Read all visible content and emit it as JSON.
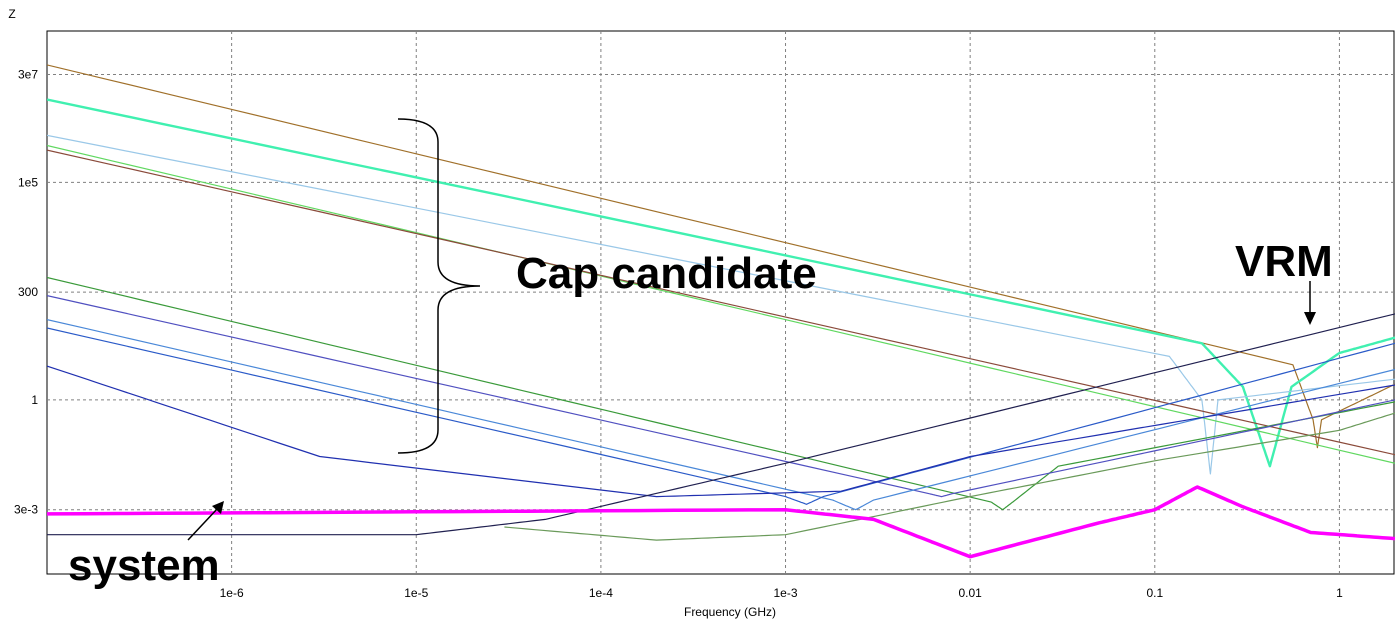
{
  "chart_data": {
    "type": "line",
    "ylabel": "Z",
    "xlabel": "Frequency (GHz)",
    "x_scale": "log",
    "y_scale": "log",
    "xlim": [
      1e-07,
      2
    ],
    "ylim": [
      0.0001,
      300000000.0
    ],
    "grid": true,
    "x_ticks": [
      {
        "value": 1e-06,
        "label": "1e-6"
      },
      {
        "value": 1e-05,
        "label": "1e-5"
      },
      {
        "value": 0.0001,
        "label": "1e-4"
      },
      {
        "value": 0.001,
        "label": "1e-3"
      },
      {
        "value": 0.01,
        "label": "0.01"
      },
      {
        "value": 0.1,
        "label": "0.1"
      },
      {
        "value": 1,
        "label": "1"
      }
    ],
    "y_ticks": [
      {
        "value": 30000000.0,
        "label": "3e7"
      },
      {
        "value": 100000.0,
        "label": "1e5"
      },
      {
        "value": 300,
        "label": "300"
      },
      {
        "value": 1,
        "label": "1"
      },
      {
        "value": 0.003,
        "label": "3e-3"
      }
    ],
    "annotations": [
      {
        "text": "Cap candidate"
      },
      {
        "text": "VRM"
      },
      {
        "text": "system"
      }
    ],
    "series": [
      {
        "color": "#a0702a",
        "width": 1.2,
        "points": [
          [
            1e-07,
            50000000.0
          ],
          [
            0.56,
            6.4
          ],
          [
            0.72,
            0.35
          ],
          [
            0.76,
            0.08
          ],
          [
            0.8,
            0.35
          ],
          [
            2,
            2.3
          ]
        ]
      },
      {
        "color": "#40f0b0",
        "width": 2.4,
        "points": [
          [
            1e-07,
            8000000.0
          ],
          [
            0.18,
            20
          ],
          [
            0.3,
            2
          ],
          [
            0.42,
            0.03
          ],
          [
            0.55,
            2
          ],
          [
            1,
            12
          ],
          [
            2,
            27
          ]
        ]
      },
      {
        "color": "#9ac8e8",
        "width": 1.2,
        "points": [
          [
            1e-07,
            1200000.0
          ],
          [
            0.12,
            10
          ],
          [
            0.18,
            1
          ],
          [
            0.2,
            0.02
          ],
          [
            0.22,
            1
          ],
          [
            2,
            3
          ]
        ]
      },
      {
        "color": "#60d860",
        "width": 1.2,
        "points": [
          [
            1e-07,
            700000.0
          ],
          [
            2,
            0.035
          ]
        ]
      },
      {
        "color": "#8a4a3a",
        "width": 1.2,
        "points": [
          [
            1e-07,
            550000.0
          ],
          [
            2,
            0.055
          ]
        ]
      },
      {
        "color": "#3a9a3a",
        "width": 1.2,
        "points": [
          [
            1e-07,
            650
          ],
          [
            0.013,
            0.0045
          ],
          [
            0.015,
            0.003
          ],
          [
            0.017,
            0.0045
          ],
          [
            0.03,
            0.03
          ],
          [
            2,
            0.9
          ]
        ]
      },
      {
        "color": "#5050c0",
        "width": 1.2,
        "points": [
          [
            1e-07,
            250
          ],
          [
            0.006,
            0.007
          ],
          [
            0.007,
            0.006
          ],
          [
            0.008,
            0.007
          ],
          [
            2,
            1
          ]
        ]
      },
      {
        "color": "#4a88d8",
        "width": 1.2,
        "points": [
          [
            1e-07,
            70
          ],
          [
            0.0018,
            0.005
          ],
          [
            0.0024,
            0.003
          ],
          [
            0.003,
            0.005
          ],
          [
            2,
            5
          ]
        ]
      },
      {
        "color": "#2a5ac8",
        "width": 1.2,
        "points": [
          [
            1e-07,
            45
          ],
          [
            0.001,
            0.006
          ],
          [
            0.0013,
            0.004
          ],
          [
            0.0016,
            0.006
          ],
          [
            2,
            20
          ]
        ]
      },
      {
        "color": "#2030b0",
        "width": 1.2,
        "points": [
          [
            1e-07,
            6
          ],
          [
            3e-06,
            0.05
          ],
          [
            0.0002,
            0.006
          ],
          [
            0.002,
            0.008
          ],
          [
            0.01,
            0.05
          ],
          [
            2,
            2.2
          ]
        ]
      },
      {
        "color": "#6a9a5a",
        "width": 1.2,
        "points": [
          [
            3e-05,
            0.0012
          ],
          [
            0.0002,
            0.0006
          ],
          [
            0.001,
            0.0008
          ],
          [
            0.01,
            0.006
          ],
          [
            0.1,
            0.04
          ],
          [
            1,
            0.2
          ],
          [
            2,
            0.5
          ]
        ]
      },
      {
        "color": "#202050",
        "width": 1.2,
        "points": [
          [
            1e-07,
            0.0008
          ],
          [
            1e-05,
            0.0008
          ],
          [
            5e-05,
            0.0018
          ],
          [
            0.001,
            0.035
          ],
          [
            2,
            95
          ]
        ]
      },
      {
        "color": "#ff00ff",
        "width": 3.5,
        "points": [
          [
            1e-07,
            0.0024
          ],
          [
            0.001,
            0.003
          ],
          [
            0.003,
            0.0018
          ],
          [
            0.01,
            0.00025
          ],
          [
            0.05,
            0.0015
          ],
          [
            0.1,
            0.003
          ],
          [
            0.17,
            0.01
          ],
          [
            0.3,
            0.0035
          ],
          [
            0.7,
            0.0009
          ],
          [
            2,
            0.00065
          ]
        ]
      }
    ]
  }
}
